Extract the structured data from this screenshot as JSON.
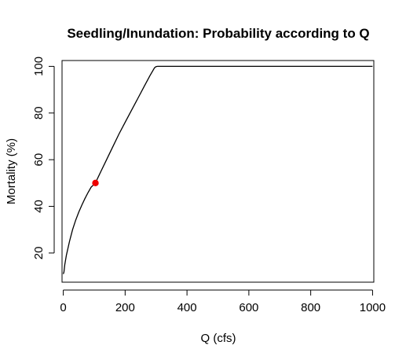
{
  "chart_data": {
    "type": "line",
    "title": "Seedling/Inundation: Probability according to Q",
    "xlabel": "Q (cfs)",
    "ylabel": "Mortality (%)",
    "xlim": [
      -4,
      1004
    ],
    "ylim": [
      7.5,
      102.5
    ],
    "x_ticks": [
      "0",
      "200",
      "400",
      "600",
      "800",
      "1000"
    ],
    "y_ticks": [
      "20",
      "40",
      "60",
      "80",
      "100"
    ],
    "grid": false,
    "legend": "none",
    "line_color": "#000000",
    "point_color": "#ee0000",
    "series": [
      {
        "values_x": [
          0,
          2,
          5,
          10,
          20,
          30,
          40,
          50,
          60,
          70,
          80,
          90,
          104,
          120,
          140,
          160,
          180,
          200,
          220,
          240,
          260,
          280,
          295,
          300,
          305,
          310,
          320,
          400,
          500,
          600,
          700,
          800,
          900,
          1000
        ],
        "values_y": [
          11,
          11.8,
          15,
          19,
          25,
          30,
          34,
          37.5,
          40.5,
          43.3,
          45.9,
          48.2,
          50,
          54.5,
          60,
          65.5,
          71,
          76,
          81,
          86,
          91,
          96,
          99.4,
          99.9,
          100,
          100,
          100,
          100,
          100,
          100,
          100,
          100,
          100,
          100
        ]
      }
    ],
    "highlight_point": {
      "x": 104,
      "y": 50
    }
  }
}
